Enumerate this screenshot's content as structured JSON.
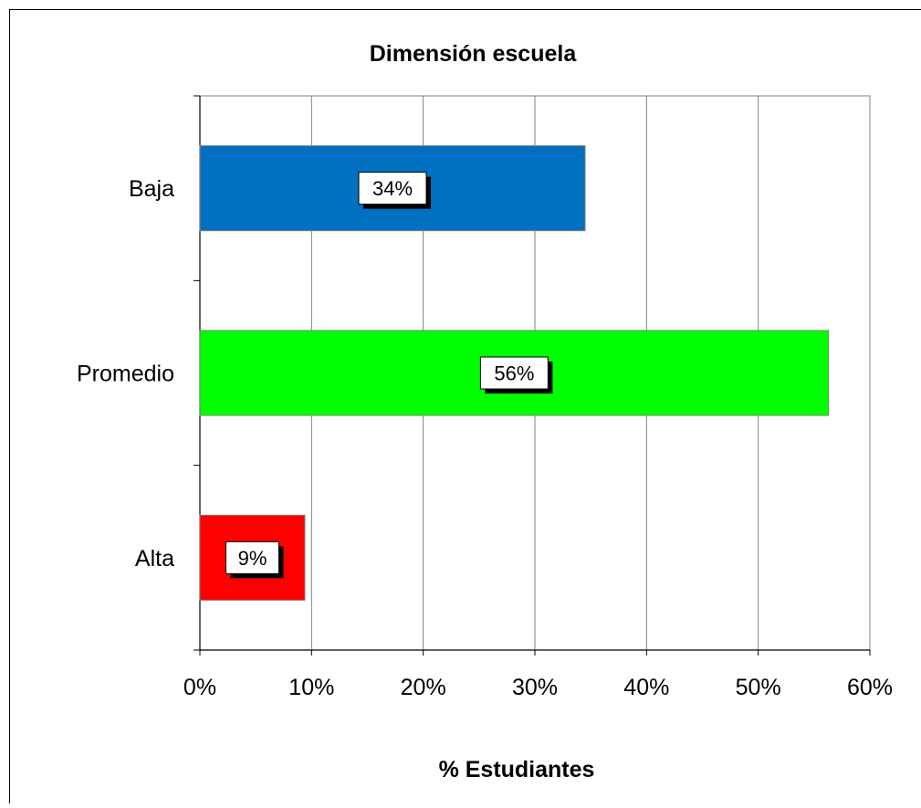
{
  "chart_data": {
    "type": "bar",
    "orientation": "horizontal",
    "title": "Dimensión  escuela",
    "xlabel": "% Estudiantes",
    "ylabel": "",
    "categories": [
      "Baja",
      "Promedio",
      "Alta"
    ],
    "values": [
      34.5,
      56.3,
      9.4
    ],
    "data_labels": [
      "34%",
      "56%",
      "9%"
    ],
    "colors": [
      "#0070C0",
      "#00FF00",
      "#FF0000"
    ],
    "xlim": [
      0,
      60
    ],
    "x_ticks": [
      "0%",
      "10%",
      "20%",
      "30%",
      "40%",
      "50%",
      "60%"
    ],
    "grid": "vertical"
  }
}
